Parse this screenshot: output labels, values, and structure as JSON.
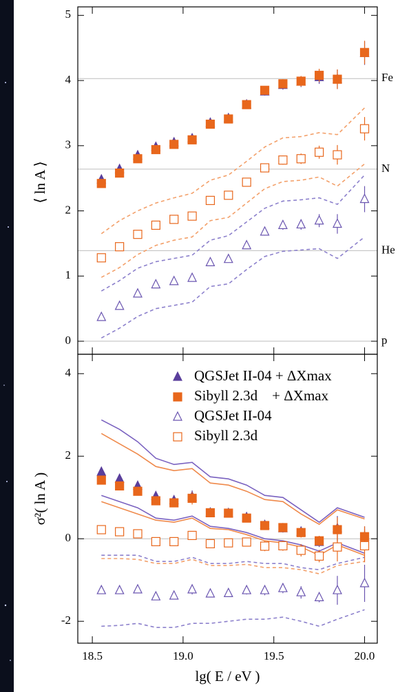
{
  "chart_data": [
    {
      "type": "scatter",
      "ylabel": "⟨ ln A ⟩",
      "x": [
        18.55,
        18.65,
        18.75,
        18.85,
        18.95,
        19.05,
        19.15,
        19.25,
        19.35,
        19.45,
        19.55,
        19.65,
        19.75,
        19.85,
        20.0
      ],
      "xlim": [
        18.42,
        20.07
      ],
      "ylim": [
        -0.2,
        5.13
      ],
      "yticks": [
        0,
        1,
        2,
        3,
        4,
        5
      ],
      "ref_lines": [
        {
          "value": 4.03,
          "label": "Fe"
        },
        {
          "value": 2.64,
          "label": "N"
        },
        {
          "value": 1.39,
          "label": "He"
        },
        {
          "value": 0,
          "label": "p"
        }
      ],
      "series": [
        {
          "color": "#f3a06a",
          "style": "dashed",
          "values": [
            1.65,
            1.85,
            2.0,
            2.12,
            2.2,
            2.27,
            2.47,
            2.55,
            2.76,
            2.98,
            3.12,
            3.14,
            3.2,
            3.17,
            3.58
          ]
        },
        {
          "color": "#f3a06a",
          "style": "dashed",
          "values": [
            0.98,
            1.13,
            1.33,
            1.47,
            1.55,
            1.6,
            1.85,
            1.9,
            2.12,
            2.34,
            2.45,
            2.47,
            2.52,
            2.38,
            2.72
          ]
        },
        {
          "color": "#8c80cc",
          "style": "dashed",
          "values": [
            0.77,
            0.93,
            1.12,
            1.22,
            1.27,
            1.32,
            1.55,
            1.62,
            1.83,
            2.04,
            2.15,
            2.17,
            2.2,
            2.1,
            2.55
          ]
        },
        {
          "color": "#8c80cc",
          "style": "dashed",
          "values": [
            0.05,
            0.2,
            0.38,
            0.5,
            0.55,
            0.6,
            0.84,
            0.88,
            1.1,
            1.3,
            1.38,
            1.4,
            1.42,
            1.27,
            1.6
          ]
        },
        {
          "color": "#5a3f9c",
          "marker": "triangle",
          "filled": true,
          "values": [
            2.48,
            2.64,
            2.85,
            2.98,
            3.05,
            3.11,
            3.35,
            3.42,
            3.63,
            3.83,
            3.93,
            3.98,
            4.05,
            4.02,
            4.42
          ],
          "errors": [
            0.04,
            0.04,
            0.04,
            0.04,
            0.04,
            0.05,
            0.05,
            0.05,
            0.05,
            0.06,
            0.07,
            0.08,
            0.1,
            0.15,
            0.18
          ]
        },
        {
          "color": "#e8671c",
          "marker": "square",
          "filled": true,
          "values": [
            2.42,
            2.58,
            2.8,
            2.94,
            3.02,
            3.09,
            3.33,
            3.41,
            3.63,
            3.85,
            3.95,
            3.99,
            4.08,
            4.02,
            4.43
          ],
          "errors": [
            0.04,
            0.04,
            0.04,
            0.04,
            0.04,
            0.05,
            0.05,
            0.05,
            0.05,
            0.06,
            0.07,
            0.08,
            0.1,
            0.15,
            0.18
          ]
        },
        {
          "color": "#e8671c",
          "marker": "square",
          "filled": false,
          "values": [
            1.28,
            1.45,
            1.64,
            1.78,
            1.87,
            1.92,
            2.16,
            2.24,
            2.44,
            2.66,
            2.78,
            2.8,
            2.9,
            2.86,
            3.26
          ],
          "errors": [
            0.04,
            0.04,
            0.04,
            0.04,
            0.04,
            0.05,
            0.05,
            0.05,
            0.05,
            0.06,
            0.07,
            0.08,
            0.1,
            0.15,
            0.18
          ]
        },
        {
          "color": "#6a55b0",
          "marker": "triangle",
          "filled": false,
          "values": [
            0.37,
            0.54,
            0.73,
            0.87,
            0.92,
            0.97,
            1.21,
            1.26,
            1.47,
            1.68,
            1.78,
            1.79,
            1.85,
            1.8,
            2.18
          ],
          "errors": [
            0.04,
            0.04,
            0.04,
            0.04,
            0.04,
            0.05,
            0.05,
            0.05,
            0.05,
            0.06,
            0.07,
            0.08,
            0.1,
            0.15,
            0.2
          ]
        }
      ]
    },
    {
      "type": "scatter",
      "ylabel": "σ²( ln A )",
      "xlabel": "lg( E / eV )",
      "x": [
        18.55,
        18.65,
        18.75,
        18.85,
        18.95,
        19.05,
        19.15,
        19.25,
        19.35,
        19.45,
        19.55,
        19.65,
        19.75,
        19.85,
        20.0
      ],
      "xlim": [
        18.42,
        20.07
      ],
      "ylim": [
        -2.53,
        4.47
      ],
      "yticks": [
        -2,
        0,
        2,
        4
      ],
      "xticks": [
        18.5,
        {
          "value": 19,
          "label": "19.0"
        },
        19.5,
        {
          "value": 20,
          "label": "20.0"
        }
      ],
      "ref_lines": [
        {
          "value": 0
        }
      ],
      "series": [
        {
          "color": "#7a62c0",
          "style": "solid",
          "values": [
            2.88,
            2.65,
            2.35,
            1.95,
            1.8,
            1.85,
            1.5,
            1.45,
            1.3,
            1.05,
            1.0,
            0.7,
            0.4,
            0.75,
            0.52
          ]
        },
        {
          "color": "#ef8a4c",
          "style": "solid",
          "values": [
            2.55,
            2.3,
            2.05,
            1.75,
            1.65,
            1.7,
            1.35,
            1.3,
            1.15,
            0.95,
            0.9,
            0.6,
            0.35,
            0.7,
            0.48
          ]
        },
        {
          "color": "#7a62c0",
          "style": "solid",
          "values": [
            1.05,
            0.9,
            0.75,
            0.5,
            0.45,
            0.55,
            0.3,
            0.25,
            0.15,
            0.0,
            -0.05,
            -0.15,
            -0.3,
            -0.1,
            -0.35
          ]
        },
        {
          "color": "#ef8a4c",
          "style": "solid",
          "values": [
            0.9,
            0.75,
            0.6,
            0.45,
            0.4,
            0.5,
            0.25,
            0.22,
            0.1,
            -0.05,
            -0.1,
            -0.2,
            -0.4,
            -0.15,
            -0.4
          ]
        },
        {
          "color": "#f3a06a",
          "style": "dashed",
          "values": [
            -0.48,
            -0.48,
            -0.5,
            -0.6,
            -0.6,
            -0.5,
            -0.65,
            -0.65,
            -0.62,
            -0.7,
            -0.7,
            -0.75,
            -0.85,
            -0.65,
            -0.55
          ]
        },
        {
          "color": "#8c80cc",
          "style": "dashed",
          "values": [
            -0.4,
            -0.4,
            -0.4,
            -0.55,
            -0.55,
            -0.45,
            -0.6,
            -0.6,
            -0.55,
            -0.6,
            -0.6,
            -0.7,
            -0.75,
            -0.6,
            -0.45
          ]
        },
        {
          "color": "#8c80cc",
          "style": "dashed",
          "values": [
            -2.12,
            -2.1,
            -2.05,
            -2.15,
            -2.15,
            -2.05,
            -2.05,
            -2.0,
            -1.95,
            -1.95,
            -1.9,
            -2.0,
            -2.12,
            -1.95,
            -1.72
          ]
        },
        {
          "name": "QGSJet II-04 + ΔXmax",
          "color": "#5a3f9c",
          "marker": "triangle",
          "filled": true,
          "values": [
            1.62,
            1.45,
            1.28,
            1.03,
            0.93,
            1.02,
            0.63,
            0.62,
            0.52,
            0.33,
            0.25,
            0.17,
            -0.08,
            0.25,
            0.05
          ],
          "errors": [
            0.08,
            0.1,
            0.1,
            0.1,
            0.1,
            0.15,
            0.08,
            0.08,
            0.1,
            0.1,
            0.1,
            0.12,
            0.12,
            0.3,
            0.25
          ]
        },
        {
          "name": "Sibyll 2.3d    + ΔXmax",
          "color": "#e8671c",
          "marker": "square",
          "filled": true,
          "values": [
            1.42,
            1.28,
            1.15,
            0.92,
            0.87,
            0.98,
            0.63,
            0.62,
            0.5,
            0.32,
            0.27,
            0.15,
            -0.05,
            0.22,
            0.05
          ],
          "errors": [
            0.08,
            0.1,
            0.1,
            0.1,
            0.1,
            0.15,
            0.08,
            0.08,
            0.1,
            0.1,
            0.1,
            0.12,
            0.12,
            0.3,
            0.25
          ]
        },
        {
          "name": "QGSJet II-04",
          "color": "#6a55b0",
          "marker": "triangle",
          "filled": false,
          "values": [
            -1.25,
            -1.25,
            -1.23,
            -1.4,
            -1.38,
            -1.23,
            -1.33,
            -1.32,
            -1.25,
            -1.25,
            -1.2,
            -1.3,
            -1.42,
            -1.25,
            -1.08
          ],
          "errors": [
            0.08,
            0.08,
            0.08,
            0.08,
            0.08,
            0.12,
            0.08,
            0.08,
            0.1,
            0.12,
            0.12,
            0.15,
            0.12,
            0.35,
            0.45
          ]
        },
        {
          "name": "Sibyll 2.3d",
          "color": "#e8671c",
          "marker": "square",
          "filled": false,
          "values": [
            0.22,
            0.17,
            0.12,
            -0.07,
            -0.07,
            0.08,
            -0.12,
            -0.1,
            -0.08,
            -0.18,
            -0.17,
            -0.28,
            -0.42,
            -0.2,
            -0.17
          ],
          "errors": [
            0.06,
            0.06,
            0.06,
            0.06,
            0.06,
            0.1,
            0.06,
            0.06,
            0.1,
            0.12,
            0.12,
            0.15,
            0.15,
            0.35,
            0.4
          ]
        }
      ]
    }
  ]
}
